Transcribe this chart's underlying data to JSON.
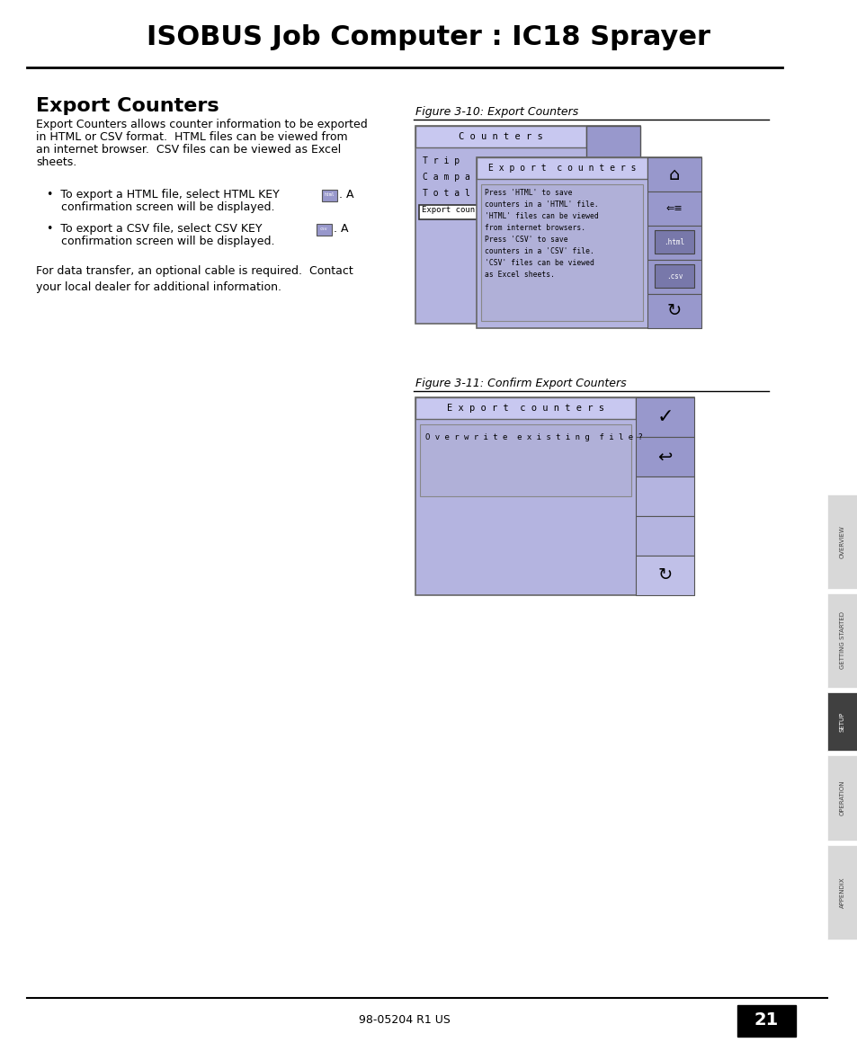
{
  "title": "ISOBUS Job Computer : IC18 Sprayer",
  "section_title": "Export Counters",
  "section_body_lines": [
    "Export Counters allows counter information to be exported",
    "in HTML or CSV format.  HTML files can be viewed from",
    "an internet browser.  CSV files can be viewed as Excel",
    "sheets."
  ],
  "bullet1_text": "To export a HTML file, select HTML KEY",
  "bullet1_cont": "confirmation screen will be displayed.",
  "bullet2_text": "To export a CSV file, select CSV KEY",
  "bullet2_cont": "confirmation screen will be displayed.",
  "footer_body": "For data transfer, an optional cable is required.  Contact\nyour local dealer for additional information.",
  "fig1_caption": "Figure 3-10: Export Counters",
  "fig2_caption": "Figure 3-11: Confirm Export Counters",
  "page_num": "21",
  "footer_code": "98-05204 R1 US",
  "sidebar_labels": [
    "OVERVIEW",
    "GETTING STARTED",
    "SETUP",
    "OPERATION",
    "APPENDIX"
  ],
  "sidebar_active_idx": 2,
  "bg_color": "#ffffff",
  "panel_bg": "#b4b4e0",
  "panel_header_bg": "#c8c8f0",
  "panel_btn_bg": "#9898cc",
  "panel_inner_bg": "#c0c0e8",
  "panel_textbox_bg": "#b0b0d8",
  "sidebar_inactive_bg": "#d8d8d8",
  "sidebar_active_bg": "#404040",
  "sidebar_inactive_text": "#444444",
  "sidebar_active_text": "#ffffff"
}
